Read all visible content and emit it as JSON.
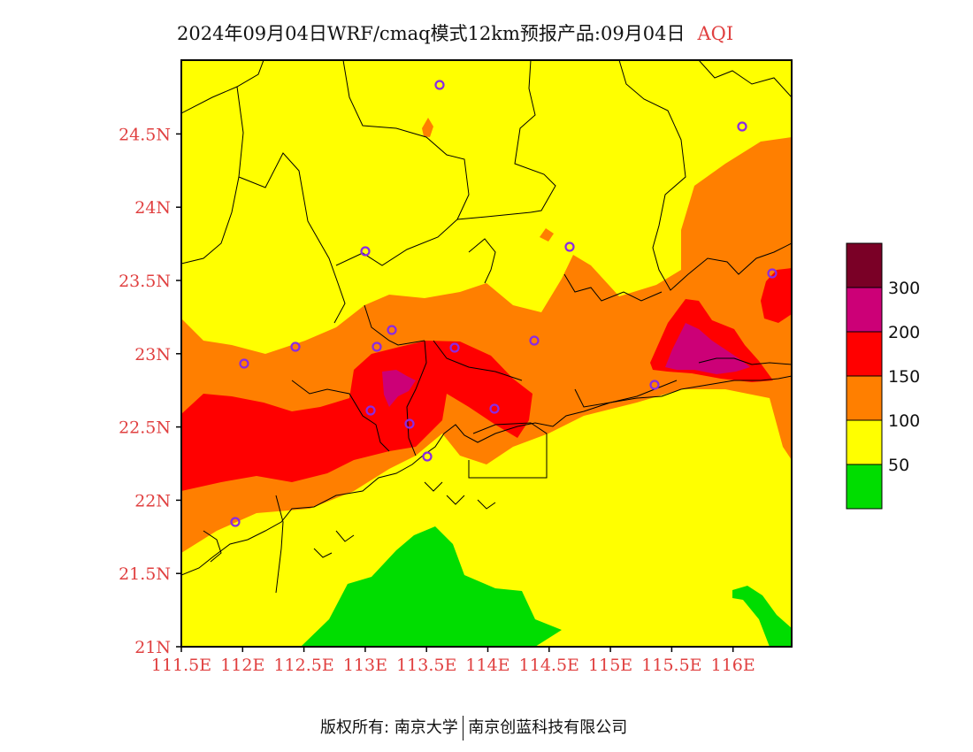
{
  "title": {
    "main": "2024年09月04日WRF/cmaq模式12km预报产品:09月04日",
    "variable": "AQI"
  },
  "axes": {
    "lat_labels": [
      "21N",
      "21.5N",
      "22N",
      "22.5N",
      "23N",
      "23.5N",
      "24N",
      "24.5N"
    ],
    "lon_labels": [
      "111.5E",
      "112E",
      "112.5E",
      "113E",
      "113.5E",
      "114E",
      "114.5E",
      "115E",
      "115.5E",
      "116E"
    ]
  },
  "legend": {
    "levels": [
      "50",
      "100",
      "150",
      "200",
      "300"
    ],
    "colors": [
      "#00dd00",
      "#ffff00",
      "#ff7f00",
      "#ff0000",
      "#cc0077",
      "#7a0026"
    ]
  },
  "footer": {
    "left": "版权所有: 南京大学",
    "right": "南京创蓝科技有限公司"
  },
  "palette": {
    "good": "#00dd00",
    "moderate": "#ffff00",
    "unhealthy_sensitive": "#ff7f00",
    "unhealthy": "#ff0000",
    "very_unhealthy": "#cc0077",
    "hazardous": "#7a0026",
    "station_marker": "#8a2be2"
  }
}
